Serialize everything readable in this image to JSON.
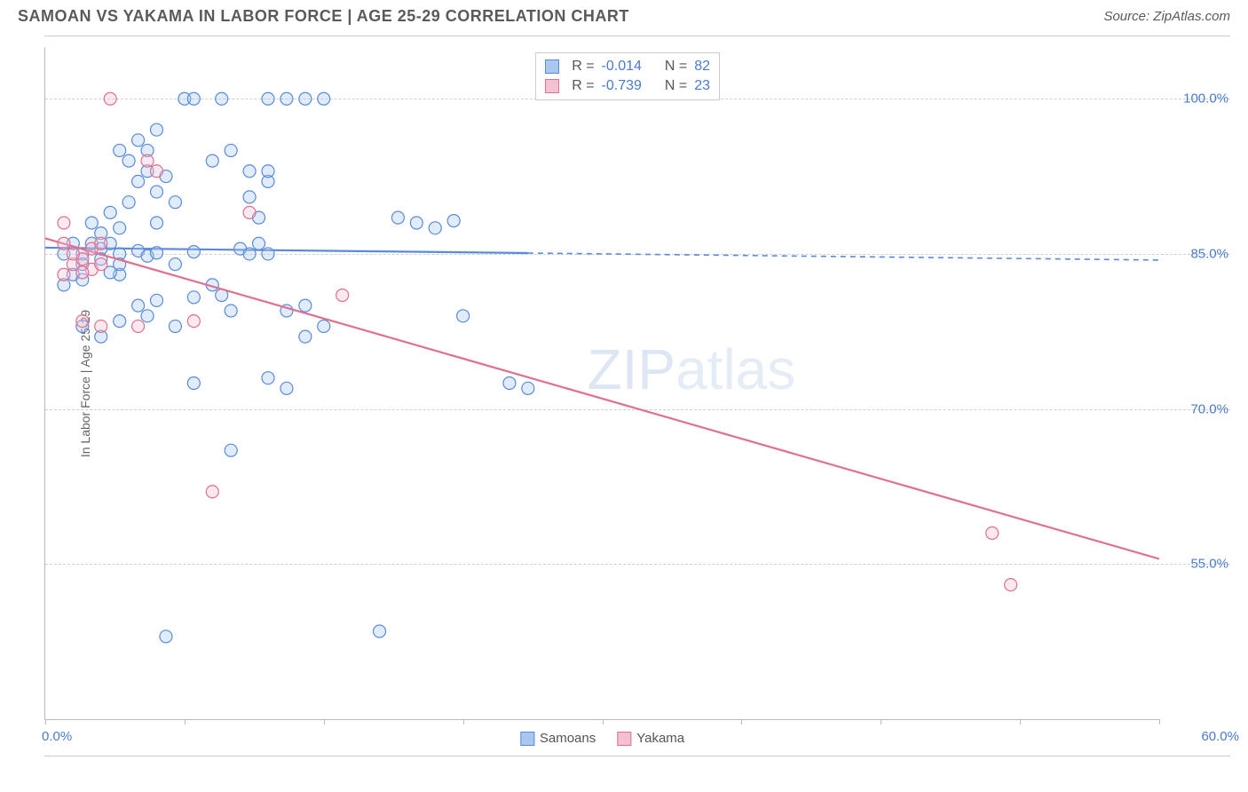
{
  "header": {
    "title": "SAMOAN VS YAKAMA IN LABOR FORCE | AGE 25-29 CORRELATION CHART",
    "source": "Source: ZipAtlas.com"
  },
  "watermark": {
    "part1": "ZIP",
    "part2": "atlas"
  },
  "chart": {
    "type": "scatter",
    "ylabel": "In Labor Force | Age 25-29",
    "xlim": [
      0,
      60
    ],
    "ylim": [
      40,
      105
    ],
    "xlim_labels": {
      "min": "0.0%",
      "max": "60.0%"
    },
    "ytick_positions": [
      55,
      70,
      85,
      100
    ],
    "ytick_labels": [
      "55.0%",
      "70.0%",
      "85.0%",
      "100.0%"
    ],
    "xtick_positions": [
      0,
      7.5,
      15,
      22.5,
      30,
      37.5,
      45,
      52.5,
      60
    ],
    "grid_color": "#d0d0d0",
    "background_color": "#ffffff",
    "axis_color": "#bbbbbb",
    "label_color": "#4a7bc8",
    "label_fontsize": 15,
    "title_fontsize": 18,
    "marker_radius": 7,
    "series": [
      {
        "name": "Samoans",
        "fill": "#a8c8f0",
        "stroke": "#5a8bd8",
        "points": [
          [
            1,
            85
          ],
          [
            1.5,
            86
          ],
          [
            2,
            85
          ],
          [
            2,
            84
          ],
          [
            2.5,
            86
          ],
          [
            3,
            85.5
          ],
          [
            3,
            84.5
          ],
          [
            3.5,
            86
          ],
          [
            4,
            85
          ],
          [
            4,
            83
          ],
          [
            1,
            82
          ],
          [
            1.5,
            83
          ],
          [
            2,
            82.5
          ],
          [
            2.5,
            88
          ],
          [
            3,
            87
          ],
          [
            3.5,
            89
          ],
          [
            4,
            87.5
          ],
          [
            4.5,
            90
          ],
          [
            5,
            92
          ],
          [
            5.5,
            93
          ],
          [
            6,
            91
          ],
          [
            6.5,
            92.5
          ],
          [
            7,
            90
          ],
          [
            5,
            85.3
          ],
          [
            5.5,
            84.8
          ],
          [
            6,
            85.1
          ],
          [
            7,
            84
          ],
          [
            8,
            85.2
          ],
          [
            4,
            84
          ],
          [
            3.5,
            83.2
          ],
          [
            5,
            80
          ],
          [
            5.5,
            79
          ],
          [
            6,
            80.5
          ],
          [
            7,
            78
          ],
          [
            8,
            80.8
          ],
          [
            9,
            82
          ],
          [
            9.5,
            81
          ],
          [
            10,
            79.5
          ],
          [
            10.5,
            85.5
          ],
          [
            11,
            85
          ],
          [
            11.5,
            86
          ],
          [
            12,
            85
          ],
          [
            9,
            94
          ],
          [
            10,
            95
          ],
          [
            11,
            93
          ],
          [
            12,
            92
          ],
          [
            5,
            96
          ],
          [
            6,
            97
          ],
          [
            4,
            95
          ],
          [
            7.5,
            100
          ],
          [
            8,
            100
          ],
          [
            9.5,
            100
          ],
          [
            12,
            100
          ],
          [
            13,
            100
          ],
          [
            14,
            100
          ],
          [
            15,
            100
          ],
          [
            11.5,
            88.5
          ],
          [
            11,
            90.5
          ],
          [
            13,
            79.5
          ],
          [
            14,
            80
          ],
          [
            19,
            88.5
          ],
          [
            20,
            88
          ],
          [
            21,
            87.5
          ],
          [
            22,
            88.2
          ],
          [
            12,
            73
          ],
          [
            13,
            72
          ],
          [
            8,
            72.5
          ],
          [
            14,
            77
          ],
          [
            10,
            66
          ],
          [
            15,
            78
          ],
          [
            22.5,
            79
          ],
          [
            25,
            72.5
          ],
          [
            26,
            72
          ],
          [
            6.5,
            48
          ],
          [
            18,
            48.5
          ],
          [
            2,
            78
          ],
          [
            3,
            77
          ],
          [
            4,
            78.5
          ],
          [
            5.5,
            95
          ],
          [
            4.5,
            94
          ],
          [
            6,
            88
          ],
          [
            12,
            93
          ]
        ],
        "trend": {
          "y_start": 85.6,
          "y_end": 84.4,
          "solid_x_end": 26
        }
      },
      {
        "name": "Yakama",
        "fill": "#f5c0d0",
        "stroke": "#e07090",
        "points": [
          [
            1,
            83
          ],
          [
            1.5,
            84
          ],
          [
            2,
            84.5
          ],
          [
            2.5,
            83.5
          ],
          [
            3,
            84
          ],
          [
            1,
            86
          ],
          [
            1.5,
            85
          ],
          [
            2,
            83.2
          ],
          [
            3.5,
            100
          ],
          [
            5.5,
            94
          ],
          [
            2,
            78.5
          ],
          [
            3,
            78
          ],
          [
            1,
            88
          ],
          [
            6,
            93
          ],
          [
            11,
            89
          ],
          [
            16,
            81
          ],
          [
            8,
            78.5
          ],
          [
            5,
            78
          ],
          [
            9,
            62
          ],
          [
            51,
            58
          ],
          [
            52,
            53
          ],
          [
            2.5,
            85.5
          ],
          [
            3,
            86
          ]
        ],
        "trend": {
          "y_start": 86.5,
          "y_end": 55.5,
          "solid_x_end": 60
        }
      }
    ]
  },
  "top_legend": {
    "rows": [
      {
        "swatch_fill": "#a8c8f0",
        "swatch_stroke": "#5a8bd8",
        "r_label": "R =",
        "r_value": "-0.014",
        "n_label": "N =",
        "n_value": "82"
      },
      {
        "swatch_fill": "#f5c0d0",
        "swatch_stroke": "#e07090",
        "r_label": "R =",
        "r_value": "-0.739",
        "n_label": "N =",
        "n_value": "23"
      }
    ]
  },
  "bottom_legend": {
    "items": [
      {
        "swatch_fill": "#a8c8f0",
        "swatch_stroke": "#5a8bd8",
        "label": "Samoans"
      },
      {
        "swatch_fill": "#f5c0d0",
        "swatch_stroke": "#e07090",
        "label": "Yakama"
      }
    ]
  }
}
